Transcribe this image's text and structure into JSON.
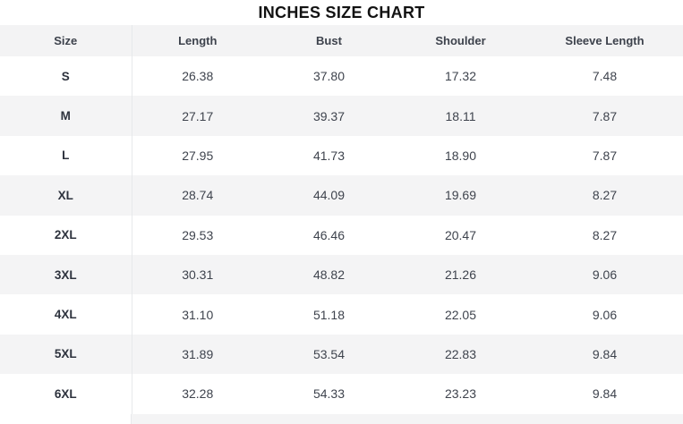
{
  "title": "INCHES SIZE CHART",
  "chart_data": {
    "type": "table",
    "title": "INCHES SIZE CHART",
    "columns": [
      "Size",
      "Length",
      "Bust",
      "Shoulder",
      "Sleeve Length"
    ],
    "rows": [
      [
        "S",
        "26.38",
        "37.80",
        "17.32",
        "7.48"
      ],
      [
        "M",
        "27.17",
        "39.37",
        "18.11",
        "7.87"
      ],
      [
        "L",
        "27.95",
        "41.73",
        "18.90",
        "7.87"
      ],
      [
        "XL",
        "28.74",
        "44.09",
        "19.69",
        "8.27"
      ],
      [
        "2XL",
        "29.53",
        "46.46",
        "20.47",
        "8.27"
      ],
      [
        "3XL",
        "30.31",
        "48.82",
        "21.26",
        "9.06"
      ],
      [
        "4XL",
        "31.10",
        "51.18",
        "22.05",
        "9.06"
      ],
      [
        "5XL",
        "31.89",
        "53.54",
        "22.83",
        "9.84"
      ],
      [
        "6XL",
        "32.28",
        "54.33",
        "23.23",
        "9.84"
      ]
    ],
    "layout": {
      "zebra_striping": true,
      "first_column_divider": true,
      "partial_next_row_visible_at_bottom": true
    }
  },
  "colors": {
    "header_bg": "#f3f3f4",
    "row_alt_bg": "#f4f4f5",
    "divider": "#e7e9eb",
    "title_text": "#121212",
    "value_text": "#3e434d"
  }
}
